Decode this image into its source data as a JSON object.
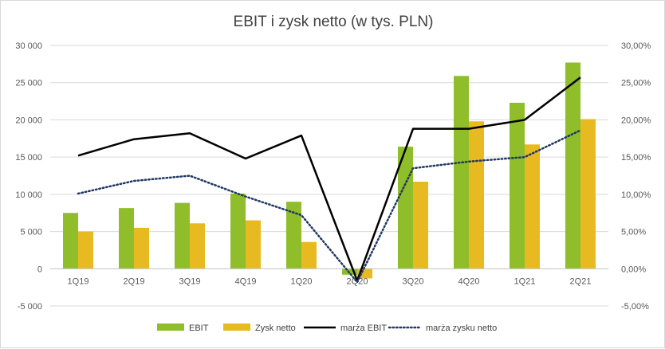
{
  "chart_data": {
    "type": "bar",
    "title": "EBIT i zysk netto (w tys. PLN)",
    "categories": [
      "1Q19",
      "2Q19",
      "3Q19",
      "4Q19",
      "1Q20",
      "2Q20",
      "3Q20",
      "4Q20",
      "1Q21",
      "2Q21"
    ],
    "bar_series": [
      {
        "name": "EBIT",
        "color": "#8fbe2a",
        "values": [
          7500,
          8150,
          8850,
          10100,
          9000,
          -800,
          16400,
          25900,
          22300,
          27700
        ]
      },
      {
        "name": "Zysk netto",
        "color": "#e8ba22",
        "values": [
          5000,
          5500,
          6100,
          6500,
          3600,
          -1300,
          11700,
          19800,
          16700,
          20100
        ]
      }
    ],
    "line_series": [
      {
        "name": "marża EBIT",
        "color": "#000000",
        "style": "solid",
        "values": [
          15.2,
          17.4,
          18.2,
          14.8,
          17.9,
          -1.6,
          18.8,
          18.8,
          20.0,
          25.7
        ]
      },
      {
        "name": "marża zysku netto",
        "color": "#203864",
        "style": "dotted",
        "values": [
          10.1,
          11.8,
          12.5,
          9.7,
          7.2,
          -1.8,
          13.5,
          14.4,
          15.0,
          18.6
        ]
      }
    ],
    "y_left": {
      "min": -5000,
      "max": 30000,
      "step": 5000,
      "tick_labels": [
        "-5 000",
        "0",
        "5 000",
        "10 000",
        "15 000",
        "20 000",
        "25 000",
        "30 000"
      ]
    },
    "y_right": {
      "min": -5,
      "max": 30,
      "step": 5,
      "tick_labels": [
        "-5,00%",
        "0,00%",
        "5,00%",
        "10,00%",
        "15,00%",
        "20,00%",
        "25,00%",
        "30,00%"
      ]
    },
    "grid": true,
    "legend": {
      "position": "bottom",
      "entries": [
        "EBIT",
        "Zysk netto",
        "marża EBIT",
        "marża zysku netto"
      ]
    }
  }
}
